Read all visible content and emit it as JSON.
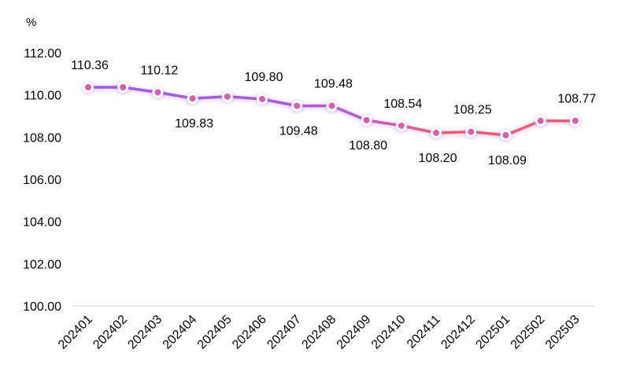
{
  "chart_data": {
    "type": "line",
    "unit_label": "%",
    "categories": [
      "202401",
      "202402",
      "202403",
      "202404",
      "202405",
      "202406",
      "202407",
      "202408",
      "202409",
      "202410",
      "202411",
      "202412",
      "202501",
      "202502",
      "202503"
    ],
    "series": [
      {
        "values": [
          110.36,
          110.36,
          110.12,
          109.83,
          109.92,
          109.8,
          109.48,
          109.48,
          108.8,
          108.54,
          108.2,
          108.25,
          108.09,
          108.77,
          108.77
        ]
      }
    ],
    "data_labels": [
      {
        "index": 0,
        "text": "110.36",
        "pos": "above"
      },
      {
        "index": 2,
        "text": "110.12",
        "pos": "above"
      },
      {
        "index": 3,
        "text": "109.83",
        "pos": "below"
      },
      {
        "index": 5,
        "text": "109.80",
        "pos": "above"
      },
      {
        "index": 6,
        "text": "109.48",
        "pos": "below"
      },
      {
        "index": 7,
        "text": "109.48",
        "pos": "above"
      },
      {
        "index": 8,
        "text": "108.80",
        "pos": "below"
      },
      {
        "index": 9,
        "text": "108.54",
        "pos": "above"
      },
      {
        "index": 10,
        "text": "108.20",
        "pos": "below"
      },
      {
        "index": 11,
        "text": "108.25",
        "pos": "above"
      },
      {
        "index": 12,
        "text": "108.09",
        "pos": "below"
      },
      {
        "index": 14,
        "text": "108.77",
        "pos": "above"
      }
    ],
    "yticks": [
      "100.00",
      "102.00",
      "104.00",
      "106.00",
      "108.00",
      "110.00",
      "112.00"
    ],
    "ylim": [
      100,
      112
    ],
    "grid": false,
    "colors": {
      "line_start": "#9b5de5",
      "line_end": "#ee5d6c",
      "marker_fill": "#d65db1",
      "marker_stroke": "#ffffff",
      "axis": "#d9d9d9"
    }
  }
}
